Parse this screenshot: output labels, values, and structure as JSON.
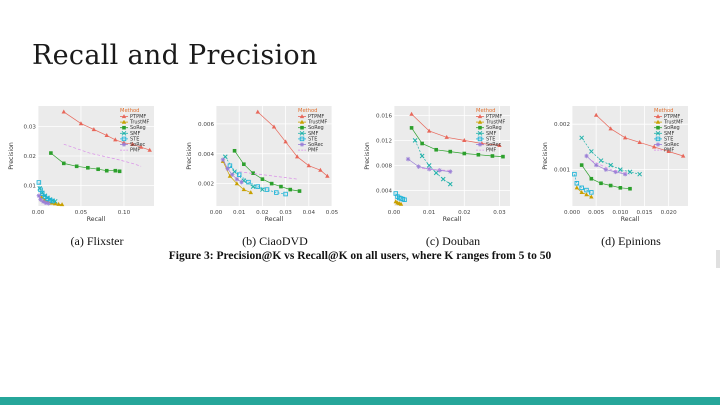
{
  "slide": {
    "title": "Recall and Precision",
    "figure_caption": "Figure 3: Precision@K vs Recall@K on all users, where K ranges from 5 to 50",
    "accent_color": "#26a69a"
  },
  "legend": {
    "title": "Method",
    "items": [
      {
        "name": "PTPMF",
        "color": "#e8675a",
        "marker": "triangle"
      },
      {
        "name": "TrustMF",
        "color": "#c8a000",
        "marker": "triangle"
      },
      {
        "name": "SoReg",
        "color": "#2ca02c",
        "marker": "square"
      },
      {
        "name": "SMF",
        "color": "#20b2aa",
        "marker": "cross"
      },
      {
        "name": "STE",
        "color": "#1fb4d8",
        "marker": "square-open"
      },
      {
        "name": "SoRec",
        "color": "#9a7fd6",
        "marker": "asterisk"
      },
      {
        "name": "PMF",
        "color": "#d98ee8",
        "marker": "none"
      }
    ]
  },
  "chart_data": [
    {
      "type": "line",
      "caption": "(a) Flixster",
      "xlabel": "Recall",
      "ylabel": "Precision",
      "xlim": [
        0,
        0.135
      ],
      "ylim": [
        0.003,
        0.037
      ],
      "xticks": [
        0.0,
        0.05,
        0.1
      ],
      "xtick_labels": [
        "0.00",
        "0.05",
        "0.10"
      ],
      "yticks": [
        0.01,
        0.02,
        0.03
      ],
      "ytick_labels": [
        "0.01",
        "0.02",
        "0.03"
      ],
      "series": [
        {
          "name": "PTPMF",
          "x": [
            0.03,
            0.05,
            0.065,
            0.08,
            0.09,
            0.1,
            0.11,
            0.12,
            0.13
          ],
          "y": [
            0.035,
            0.031,
            0.029,
            0.027,
            0.0255,
            0.0245,
            0.024,
            0.023,
            0.022
          ]
        },
        {
          "name": "TrustMF",
          "x": [
            0.004,
            0.008,
            0.012,
            0.016,
            0.02,
            0.024,
            0.028
          ],
          "y": [
            0.006,
            0.005,
            0.0045,
            0.004,
            0.0038,
            0.0036,
            0.0035
          ]
        },
        {
          "name": "SoReg",
          "x": [
            0.015,
            0.03,
            0.045,
            0.058,
            0.07,
            0.08,
            0.09,
            0.095
          ],
          "y": [
            0.021,
            0.0175,
            0.0165,
            0.016,
            0.0155,
            0.015,
            0.015,
            0.0148
          ]
        },
        {
          "name": "SMF",
          "x": [
            0.002,
            0.005,
            0.008,
            0.011,
            0.014,
            0.017,
            0.02
          ],
          "y": [
            0.009,
            0.0075,
            0.0065,
            0.0058,
            0.0052,
            0.0048,
            0.0046
          ]
        },
        {
          "name": "STE",
          "x": [
            0.001,
            0.003,
            0.005,
            0.008,
            0.011,
            0.014,
            0.017
          ],
          "y": [
            0.011,
            0.0085,
            0.0072,
            0.0062,
            0.0055,
            0.005,
            0.0047
          ]
        },
        {
          "name": "SoRec",
          "x": [
            0.001,
            0.003,
            0.006,
            0.009,
            0.012
          ],
          "y": [
            0.0065,
            0.0052,
            0.0045,
            0.0041,
            0.0039
          ]
        },
        {
          "name": "PMF",
          "x": [
            0.03,
            0.06,
            0.09,
            0.11,
            0.12
          ],
          "y": [
            0.024,
            0.021,
            0.019,
            0.0175,
            0.0165
          ]
        }
      ]
    },
    {
      "type": "line",
      "caption": "(b) CiaoDVD",
      "xlabel": "Recall",
      "ylabel": "Precision",
      "xlim": [
        0,
        0.05
      ],
      "ylim": [
        0.0005,
        0.0072
      ],
      "xticks": [
        0.0,
        0.01,
        0.02,
        0.03,
        0.04,
        0.05
      ],
      "xtick_labels": [
        "0.00",
        "0.01",
        "0.02",
        "0.03",
        "0.04",
        "0.05"
      ],
      "yticks": [
        0.002,
        0.004,
        0.006
      ],
      "ytick_labels": [
        "0.002",
        "0.004",
        "0.006"
      ],
      "series": [
        {
          "name": "PTPMF",
          "x": [
            0.018,
            0.025,
            0.03,
            0.035,
            0.04,
            0.045,
            0.048
          ],
          "y": [
            0.0068,
            0.0058,
            0.0048,
            0.0038,
            0.0032,
            0.0029,
            0.0025
          ]
        },
        {
          "name": "TrustMF",
          "x": [
            0.003,
            0.006,
            0.009,
            0.012,
            0.015
          ],
          "y": [
            0.0035,
            0.0025,
            0.002,
            0.0016,
            0.0014
          ]
        },
        {
          "name": "SoReg",
          "x": [
            0.008,
            0.012,
            0.016,
            0.02,
            0.024,
            0.028,
            0.032,
            0.036
          ],
          "y": [
            0.0042,
            0.0033,
            0.0027,
            0.0023,
            0.002,
            0.0018,
            0.0016,
            0.0015
          ]
        },
        {
          "name": "SMF",
          "x": [
            0.004,
            0.008,
            0.012,
            0.016,
            0.02
          ],
          "y": [
            0.0038,
            0.0028,
            0.0022,
            0.0018,
            0.0016
          ]
        },
        {
          "name": "STE",
          "x": [
            0.006,
            0.01,
            0.014,
            0.018,
            0.022,
            0.026,
            0.03
          ],
          "y": [
            0.0032,
            0.0026,
            0.0021,
            0.0018,
            0.0016,
            0.0014,
            0.0013
          ]
        },
        {
          "name": "SoRec",
          "x": [
            0.003,
            0.005,
            0.007,
            0.009,
            0.011
          ],
          "y": [
            0.0036,
            0.003,
            0.0026,
            0.0023,
            0.0021
          ]
        },
        {
          "name": "PMF",
          "x": [
            0.01,
            0.02,
            0.03,
            0.035
          ],
          "y": [
            0.0028,
            0.0026,
            0.0024,
            0.0023
          ]
        }
      ]
    },
    {
      "type": "line",
      "caption": "(c) Douban",
      "xlabel": "Recall",
      "ylabel": "Precision",
      "xlim": [
        0,
        0.033
      ],
      "ylim": [
        0.0015,
        0.0175
      ],
      "xticks": [
        0.0,
        0.01,
        0.02,
        0.03
      ],
      "xtick_labels": [
        "0.00",
        "0.01",
        "0.02",
        "0.03"
      ],
      "yticks": [
        0.004,
        0.008,
        0.012,
        0.016
      ],
      "ytick_labels": [
        "0.004",
        "0.008",
        "0.012",
        "0.016"
      ],
      "series": [
        {
          "name": "PTPMF",
          "x": [
            0.005,
            0.01,
            0.015,
            0.02,
            0.025,
            0.03
          ],
          "y": [
            0.0162,
            0.0135,
            0.0125,
            0.012,
            0.0115,
            0.0112
          ]
        },
        {
          "name": "TrustMF",
          "x": [
            0.0005,
            0.001,
            0.0015,
            0.002
          ],
          "y": [
            0.0022,
            0.002,
            0.0019,
            0.0018
          ]
        },
        {
          "name": "SoReg",
          "x": [
            0.005,
            0.008,
            0.012,
            0.016,
            0.02,
            0.024,
            0.028,
            0.031
          ],
          "y": [
            0.014,
            0.0115,
            0.0105,
            0.0102,
            0.0099,
            0.0097,
            0.0095,
            0.0094
          ]
        },
        {
          "name": "SMF",
          "x": [
            0.006,
            0.008,
            0.01,
            0.012,
            0.014,
            0.016
          ],
          "y": [
            0.012,
            0.0095,
            0.008,
            0.0068,
            0.0058,
            0.005
          ]
        },
        {
          "name": "STE",
          "x": [
            0.0005,
            0.001,
            0.0015,
            0.002,
            0.0025,
            0.003
          ],
          "y": [
            0.0035,
            0.003,
            0.0028,
            0.0027,
            0.0026,
            0.0025
          ]
        },
        {
          "name": "SoRec",
          "x": [
            0.004,
            0.007,
            0.01,
            0.013,
            0.016
          ],
          "y": [
            0.009,
            0.0078,
            0.0074,
            0.0072,
            0.007
          ]
        },
        {
          "name": "PMF",
          "x": [
            0.008,
            0.012,
            0.016
          ],
          "y": [
            0.0075,
            0.0073,
            0.0072
          ]
        }
      ]
    },
    {
      "type": "line",
      "caption": "(d) Epinions",
      "xlabel": "Recall",
      "ylabel": "Precision",
      "xlim": [
        0,
        0.024
      ],
      "ylim": [
        0.0002,
        0.0024
      ],
      "xticks": [
        0.0,
        0.005,
        0.01,
        0.015,
        0.02
      ],
      "xtick_labels": [
        "0.000",
        "0.005",
        "0.010",
        "0.015",
        "0.020"
      ],
      "yticks": [
        0.001,
        0.002
      ],
      "ytick_labels": [
        "0.001",
        "0.002"
      ],
      "series": [
        {
          "name": "PTPMF",
          "x": [
            0.005,
            0.008,
            0.011,
            0.014,
            0.017,
            0.02,
            0.023
          ],
          "y": [
            0.0022,
            0.0019,
            0.0017,
            0.0016,
            0.0015,
            0.0014,
            0.0013
          ]
        },
        {
          "name": "TrustMF",
          "x": [
            0.001,
            0.002,
            0.003,
            0.004
          ],
          "y": [
            0.0006,
            0.0005,
            0.00045,
            0.0004
          ]
        },
        {
          "name": "SoReg",
          "x": [
            0.002,
            0.004,
            0.006,
            0.008,
            0.01,
            0.012
          ],
          "y": [
            0.0011,
            0.0008,
            0.0007,
            0.00065,
            0.0006,
            0.00058
          ]
        },
        {
          "name": "SMF",
          "x": [
            0.002,
            0.004,
            0.006,
            0.008,
            0.01,
            0.012,
            0.014
          ],
          "y": [
            0.0017,
            0.0014,
            0.0012,
            0.0011,
            0.001,
            0.00095,
            0.0009
          ]
        },
        {
          "name": "STE",
          "x": [
            0.0005,
            0.001,
            0.002,
            0.003,
            0.004
          ],
          "y": [
            0.0009,
            0.0007,
            0.0006,
            0.00055,
            0.0005
          ]
        },
        {
          "name": "SoRec",
          "x": [
            0.003,
            0.005,
            0.007,
            0.009,
            0.011
          ],
          "y": [
            0.0013,
            0.0011,
            0.001,
            0.00095,
            0.0009
          ]
        },
        {
          "name": "PMF",
          "x": [
            0.004,
            0.008,
            0.012
          ],
          "y": [
            0.0012,
            0.001,
            0.0009
          ]
        }
      ]
    }
  ]
}
